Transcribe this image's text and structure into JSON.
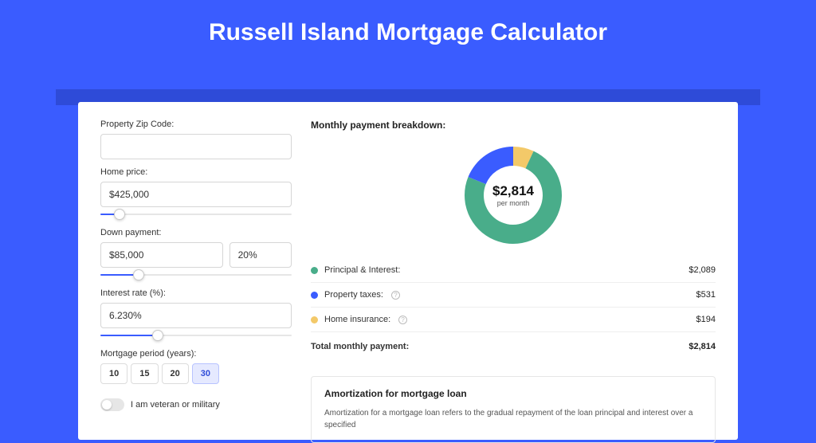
{
  "colors": {
    "page_bg": "#3a5cff",
    "strip_bg": "#2e4bd8",
    "card_bg": "#ffffff",
    "border": "#d6d6d6",
    "slider_track": "#e6e6e6",
    "slider_fill": "#3a5cff",
    "row_divider": "#efefef"
  },
  "title": "Russell Island Mortgage Calculator",
  "form": {
    "zip": {
      "label": "Property Zip Code:",
      "value": ""
    },
    "home_price": {
      "label": "Home price:",
      "value": "$425,000",
      "slider_pct": 10
    },
    "down_payment": {
      "label": "Down payment:",
      "value": "$85,000",
      "pct_value": "20%",
      "slider_pct": 20
    },
    "interest_rate": {
      "label": "Interest rate (%):",
      "value": "6.230%",
      "slider_pct": 30
    },
    "period": {
      "label": "Mortgage period (years):",
      "options": [
        "10",
        "15",
        "20",
        "30"
      ],
      "selected": "30"
    },
    "veteran": {
      "label": "I am veteran or military",
      "on": false
    }
  },
  "breakdown": {
    "title": "Monthly payment breakdown:",
    "center_amount": "$2,814",
    "center_sub": "per month",
    "donut": {
      "size": 122,
      "thickness": 24,
      "slices": [
        {
          "label": "Principal & Interest:",
          "value": "$2,089",
          "amount": 2089,
          "color": "#49ad8a",
          "info": false
        },
        {
          "label": "Property taxes:",
          "value": "$531",
          "amount": 531,
          "color": "#3a5cff",
          "info": true
        },
        {
          "label": "Home insurance:",
          "value": "$194",
          "amount": 194,
          "color": "#f3c969",
          "info": true
        }
      ]
    },
    "total_label": "Total monthly payment:",
    "total_value": "$2,814"
  },
  "amortization": {
    "title": "Amortization for mortgage loan",
    "text": "Amortization for a mortgage loan refers to the gradual repayment of the loan principal and interest over a specified"
  }
}
